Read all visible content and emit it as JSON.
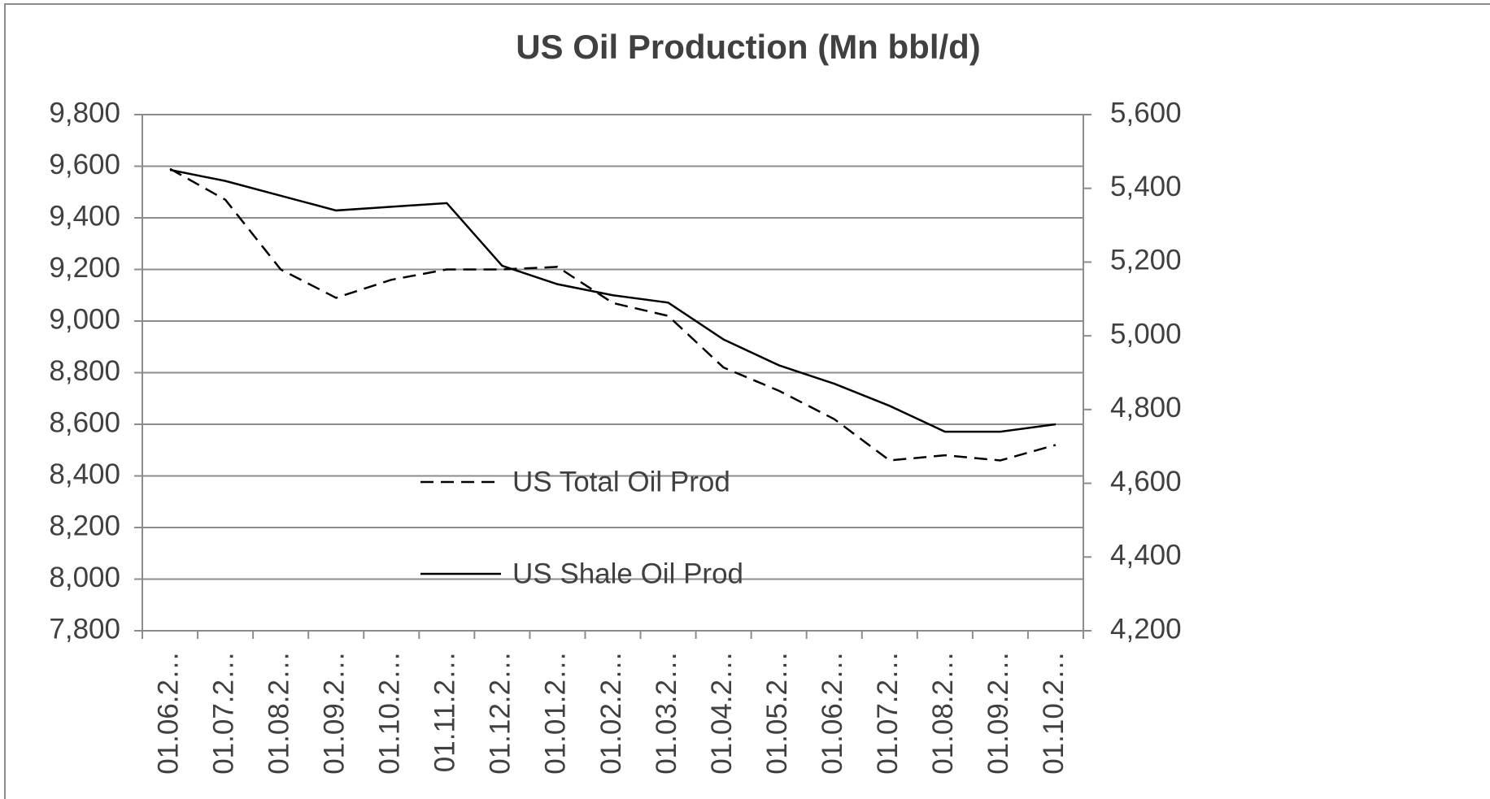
{
  "chart_data": {
    "type": "line",
    "title": "US Oil Production (Mn bbl/d)",
    "categories": [
      "01.06.2…",
      "01.07.2…",
      "01.08.2…",
      "01.09.2…",
      "01.10.2…",
      "01.11.2…",
      "01.12.2…",
      "01.01.2…",
      "01.02.2…",
      "01.03.2…",
      "01.04.2…",
      "01.05.2…",
      "01.06.2…",
      "01.07.2…",
      "01.08.2…",
      "01.09.2…",
      "01.10.2…"
    ],
    "series": [
      {
        "name": "US Total Oil Prod",
        "color": "#000000",
        "dash": true,
        "values": [
          9590,
          9470,
          9200,
          9090,
          9160,
          9200,
          9200,
          9210,
          9070,
          9020,
          8820,
          8730,
          8620,
          8460,
          8480,
          8460,
          8520
        ]
      },
      {
        "name": "US Shale Oil Prod",
        "color": "#000000",
        "dash": false,
        "axis": "y2",
        "values": [
          5450,
          5420,
          5380,
          5340,
          5350,
          5360,
          5190,
          5140,
          5110,
          5090,
          4990,
          4920,
          4870,
          4810,
          4740,
          4740,
          4760
        ]
      }
    ],
    "ylim": [
      7800,
      9800
    ],
    "yticks": [
      {
        "value": 7800,
        "label": "7,800"
      },
      {
        "value": 8000,
        "label": "8,000"
      },
      {
        "value": 8200,
        "label": "8,200"
      },
      {
        "value": 8400,
        "label": "8,400"
      },
      {
        "value": 8600,
        "label": "8,600"
      },
      {
        "value": 8800,
        "label": "8,800"
      },
      {
        "value": 9000,
        "label": "9,000"
      },
      {
        "value": 9200,
        "label": "9,200"
      },
      {
        "value": 9400,
        "label": "9,400"
      },
      {
        "value": 9600,
        "label": "9,600"
      },
      {
        "value": 9800,
        "label": "9,800"
      }
    ],
    "y2lim": [
      4200,
      5600
    ],
    "y2ticks": [
      {
        "value": 4200,
        "label": "4,200"
      },
      {
        "value": 4400,
        "label": "4,400"
      },
      {
        "value": 4600,
        "label": "4,600"
      },
      {
        "value": 4800,
        "label": "4,800"
      },
      {
        "value": 5000,
        "label": "5,000"
      },
      {
        "value": 5200,
        "label": "5,200"
      },
      {
        "value": 5400,
        "label": "5,400"
      },
      {
        "value": 5600,
        "label": "5,600"
      }
    ],
    "grid": true,
    "legend": "inside"
  }
}
